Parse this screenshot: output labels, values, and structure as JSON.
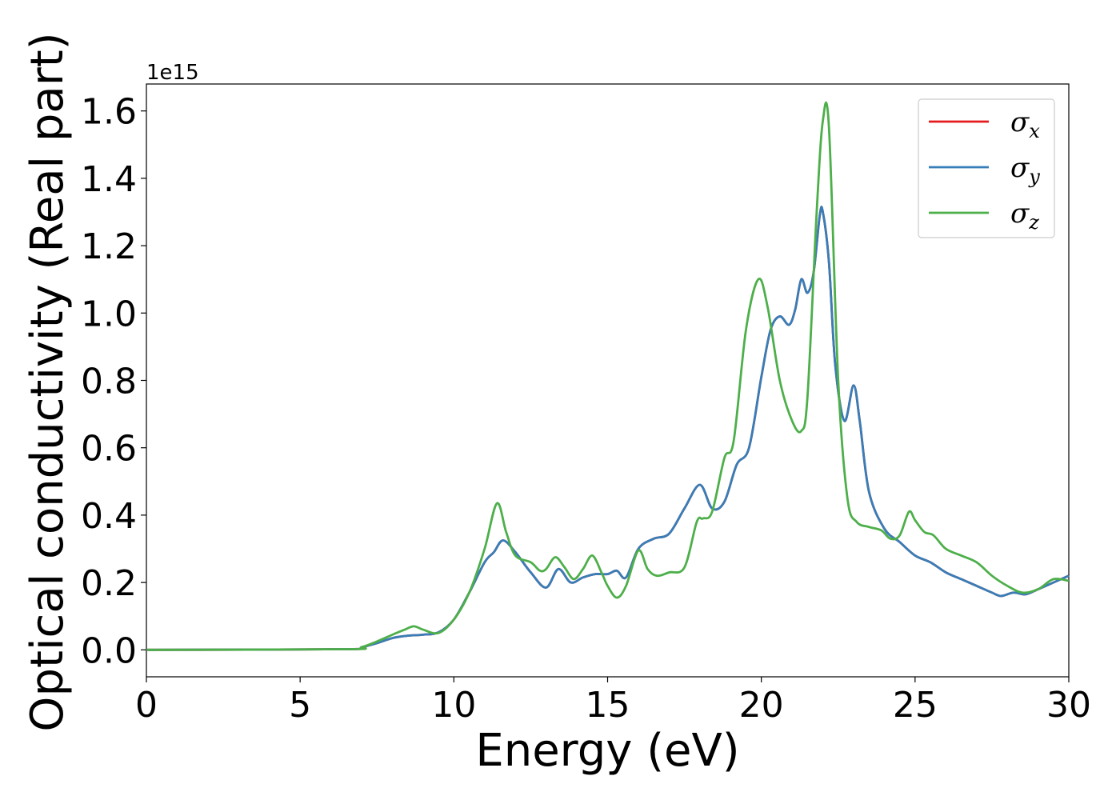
{
  "chart_data": {
    "type": "line",
    "title": "",
    "xlabel": "Energy (eV)",
    "ylabel": "Optical conductivity (Real part)",
    "y_offset_label": "1e15",
    "xlim": [
      0,
      30
    ],
    "ylim": [
      -0.08,
      1.68
    ],
    "x_ticks": [
      0,
      5,
      10,
      15,
      20,
      25,
      30
    ],
    "x_tick_labels": [
      "0",
      "5",
      "10",
      "15",
      "20",
      "25",
      "30"
    ],
    "y_ticks": [
      0.0,
      0.2,
      0.4,
      0.6,
      0.8,
      1.0,
      1.2,
      1.4,
      1.6
    ],
    "y_tick_labels": [
      "0.0",
      "0.2",
      "0.4",
      "0.6",
      "0.8",
      "1.0",
      "1.2",
      "1.4",
      "1.6"
    ],
    "grid": false,
    "legend_position": "top-right",
    "series": [
      {
        "name": "σx",
        "legend_symbol": "σ",
        "legend_subscript": "x",
        "color": "#e41a1c",
        "x": [
          0,
          6.5,
          7.0,
          7.5,
          8.0,
          8.5,
          9.0,
          9.5,
          10.0,
          10.5,
          11.0,
          11.3,
          11.6,
          12.0,
          12.5,
          13.0,
          13.4,
          13.8,
          14.2,
          14.6,
          15.0,
          15.3,
          15.6,
          16.0,
          16.5,
          17.0,
          17.5,
          18.0,
          18.4,
          18.8,
          19.2,
          19.6,
          20.0,
          20.3,
          20.6,
          20.9,
          21.1,
          21.3,
          21.5,
          21.7,
          21.9,
          22.0,
          22.2,
          22.4,
          22.7,
          23.0,
          23.2,
          23.5,
          24.0,
          24.5,
          25.0,
          25.5,
          26.0,
          26.5,
          27.0,
          27.5,
          27.8,
          28.2,
          28.6,
          29.0,
          29.5,
          30.0
        ],
        "y": [
          0.0,
          0.002,
          0.008,
          0.02,
          0.035,
          0.042,
          0.045,
          0.052,
          0.09,
          0.17,
          0.26,
          0.29,
          0.325,
          0.29,
          0.23,
          0.185,
          0.24,
          0.2,
          0.215,
          0.225,
          0.225,
          0.235,
          0.215,
          0.3,
          0.33,
          0.345,
          0.42,
          0.49,
          0.42,
          0.44,
          0.55,
          0.6,
          0.81,
          0.95,
          0.99,
          0.965,
          1.01,
          1.1,
          1.06,
          1.12,
          1.29,
          1.3,
          1.15,
          0.85,
          0.68,
          0.785,
          0.68,
          0.47,
          0.36,
          0.32,
          0.28,
          0.26,
          0.23,
          0.21,
          0.19,
          0.17,
          0.16,
          0.17,
          0.165,
          0.18,
          0.2,
          0.22
        ]
      },
      {
        "name": "σy",
        "legend_symbol": "σ",
        "legend_subscript": "y",
        "color": "#377eb8",
        "x": [
          0,
          6.5,
          7.0,
          7.5,
          8.0,
          8.5,
          9.0,
          9.5,
          10.0,
          10.5,
          11.0,
          11.3,
          11.6,
          12.0,
          12.5,
          13.0,
          13.4,
          13.8,
          14.2,
          14.6,
          15.0,
          15.3,
          15.6,
          16.0,
          16.5,
          17.0,
          17.5,
          18.0,
          18.4,
          18.8,
          19.2,
          19.6,
          20.0,
          20.3,
          20.6,
          20.9,
          21.1,
          21.3,
          21.5,
          21.7,
          21.9,
          22.0,
          22.2,
          22.4,
          22.7,
          23.0,
          23.2,
          23.5,
          24.0,
          24.5,
          25.0,
          25.5,
          26.0,
          26.5,
          27.0,
          27.5,
          27.8,
          28.2,
          28.6,
          29.0,
          29.5,
          30.0
        ],
        "y": [
          0.0,
          0.002,
          0.008,
          0.02,
          0.035,
          0.042,
          0.045,
          0.052,
          0.09,
          0.17,
          0.26,
          0.29,
          0.325,
          0.29,
          0.23,
          0.185,
          0.24,
          0.2,
          0.215,
          0.225,
          0.225,
          0.235,
          0.215,
          0.3,
          0.33,
          0.345,
          0.42,
          0.49,
          0.42,
          0.44,
          0.55,
          0.6,
          0.81,
          0.95,
          0.99,
          0.965,
          1.01,
          1.1,
          1.06,
          1.12,
          1.29,
          1.3,
          1.15,
          0.85,
          0.68,
          0.785,
          0.68,
          0.47,
          0.36,
          0.32,
          0.28,
          0.26,
          0.23,
          0.21,
          0.19,
          0.17,
          0.16,
          0.17,
          0.165,
          0.18,
          0.2,
          0.22
        ]
      },
      {
        "name": "σz",
        "legend_symbol": "σ",
        "legend_subscript": "z",
        "color": "#4daf4a",
        "x": [
          0,
          6.5,
          7.0,
          7.5,
          8.0,
          8.4,
          8.7,
          9.0,
          9.5,
          10.0,
          10.5,
          11.0,
          11.4,
          11.7,
          12.0,
          12.5,
          12.8,
          13.0,
          13.3,
          13.6,
          13.9,
          14.2,
          14.5,
          14.8,
          15.0,
          15.3,
          15.6,
          16.0,
          16.3,
          16.6,
          17.0,
          17.5,
          17.9,
          18.1,
          18.4,
          18.8,
          19.1,
          19.5,
          19.9,
          20.2,
          20.6,
          21.0,
          21.3,
          21.5,
          21.8,
          22.0,
          22.2,
          22.5,
          22.8,
          23.1,
          23.5,
          23.9,
          24.2,
          24.5,
          24.8,
          25.0,
          25.3,
          25.6,
          26.0,
          26.5,
          27.0,
          27.5,
          28.0,
          28.5,
          29.0,
          29.5,
          30.0
        ],
        "y": [
          0.0,
          0.002,
          0.008,
          0.025,
          0.045,
          0.06,
          0.07,
          0.06,
          0.05,
          0.09,
          0.17,
          0.3,
          0.435,
          0.35,
          0.28,
          0.26,
          0.235,
          0.24,
          0.275,
          0.245,
          0.21,
          0.24,
          0.28,
          0.23,
          0.19,
          0.155,
          0.19,
          0.295,
          0.24,
          0.22,
          0.23,
          0.245,
          0.38,
          0.39,
          0.41,
          0.57,
          0.62,
          0.95,
          1.1,
          1.02,
          0.8,
          0.68,
          0.65,
          0.75,
          1.3,
          1.57,
          1.55,
          0.8,
          0.45,
          0.38,
          0.365,
          0.355,
          0.33,
          0.34,
          0.41,
          0.385,
          0.35,
          0.34,
          0.3,
          0.28,
          0.26,
          0.22,
          0.19,
          0.17,
          0.18,
          0.21,
          0.205
        ]
      }
    ]
  }
}
